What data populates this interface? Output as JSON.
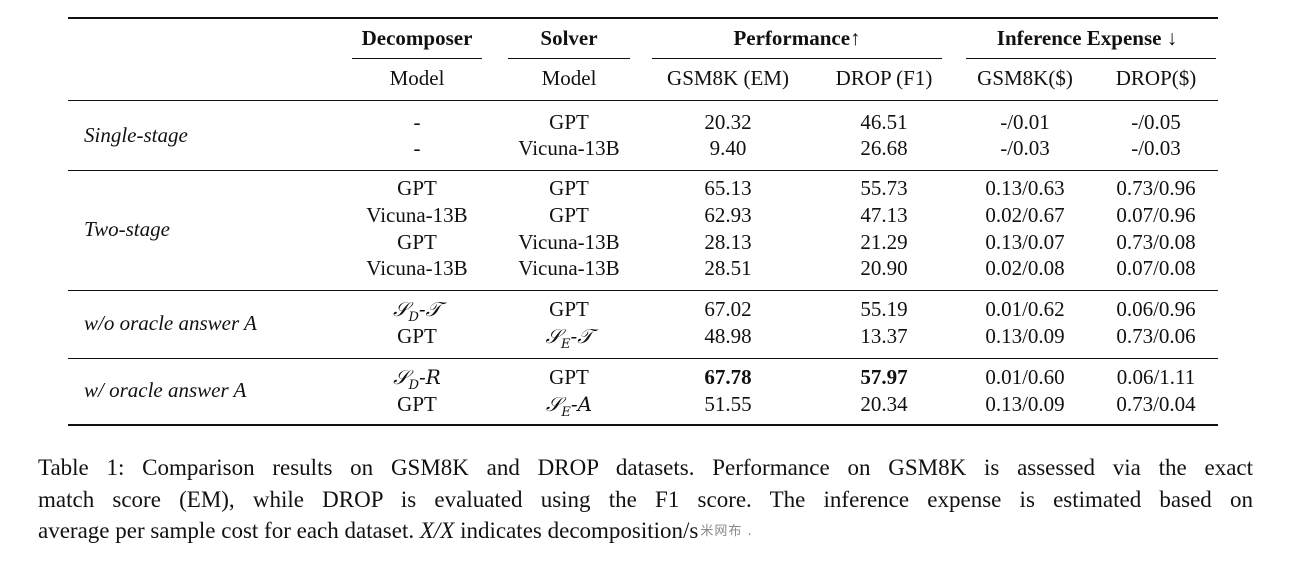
{
  "table": {
    "headers": {
      "decomposer": "Decomposer",
      "solver": "Solver",
      "performance": "Performance↑",
      "expense": "Inference Expense ↓"
    },
    "subheaders": {
      "decomposer_model": "Model",
      "solver_model": "Model",
      "gsm8k_em": "GSM8K (EM)",
      "drop_f1": "DROP (F1)",
      "gsm8k_cost": "GSM8K($)",
      "drop_cost": "DROP($)"
    },
    "groups": [
      {
        "label": "Single-stage",
        "rows": [
          {
            "decomposer": "-",
            "solver": "GPT",
            "gsm8k": "20.32",
            "drop": "46.51",
            "gsm8k_cost": "-/0.01",
            "drop_cost": "-/0.05"
          },
          {
            "decomposer": "-",
            "solver": "Vicuna-13B",
            "gsm8k": "9.40",
            "drop": "26.68",
            "gsm8k_cost": "-/0.03",
            "drop_cost": "-/0.03"
          }
        ]
      },
      {
        "label": "Two-stage",
        "rows": [
          {
            "decomposer": "GPT",
            "solver": "GPT",
            "gsm8k": "65.13",
            "drop": "55.73",
            "gsm8k_cost": "0.13/0.63",
            "drop_cost": "0.73/0.96"
          },
          {
            "decomposer": "Vicuna-13B",
            "solver": "GPT",
            "gsm8k": "62.93",
            "drop": "47.13",
            "gsm8k_cost": "0.02/0.67",
            "drop_cost": "0.07/0.96"
          },
          {
            "decomposer": "GPT",
            "solver": "Vicuna-13B",
            "gsm8k": "28.13",
            "drop": "21.29",
            "gsm8k_cost": "0.13/0.07",
            "drop_cost": "0.73/0.08"
          },
          {
            "decomposer": "Vicuna-13B",
            "solver": "Vicuna-13B",
            "gsm8k": "28.51",
            "drop": "20.90",
            "gsm8k_cost": "0.02/0.08",
            "drop_cost": "0.07/0.08"
          }
        ]
      },
      {
        "label": "w/o oracle answer A",
        "rows": [
          {
            "decomposer_math": {
              "sym": "𝒮",
              "sub": "D",
              "suffix": "-𝒯"
            },
            "solver": "GPT",
            "gsm8k": "67.02",
            "drop": "55.19",
            "gsm8k_cost": "0.01/0.62",
            "drop_cost": "0.06/0.96"
          },
          {
            "decomposer": "GPT",
            "solver_math": {
              "sym": "𝒮",
              "sub": "E",
              "suffix": "-𝒯"
            },
            "gsm8k": "48.98",
            "drop": "13.37",
            "gsm8k_cost": "0.13/0.09",
            "drop_cost": "0.73/0.06"
          }
        ]
      },
      {
        "label": "w/ oracle answer A",
        "rows": [
          {
            "decomposer_math": {
              "sym": "𝒮",
              "sub": "D",
              "suffix": "-R"
            },
            "solver": "GPT",
            "gsm8k": "67.78",
            "drop": "57.97",
            "gsm8k_cost": "0.01/0.60",
            "drop_cost": "0.06/1.11",
            "bold": [
              "gsm8k",
              "drop"
            ]
          },
          {
            "decomposer": "GPT",
            "solver_math": {
              "sym": "𝒮",
              "sub": "E",
              "suffix": "-A"
            },
            "gsm8k": "51.55",
            "drop": "20.34",
            "gsm8k_cost": "0.13/0.09",
            "drop_cost": "0.73/0.04"
          }
        ]
      }
    ]
  },
  "caption": {
    "line1": "Table 1: Comparison results on GSM8K and DROP datasets. Performance on GSM8K is assessed via the exact",
    "line2": "match score (EM), while DROP is evaluated using the F1 score.  The inference expense is estimated based on",
    "line3_before": "average per sample cost for each dataset. ",
    "line3_math": "X/X",
    "line3_after": " indicates decomposition/s",
    "watermark": "米网布 ."
  }
}
